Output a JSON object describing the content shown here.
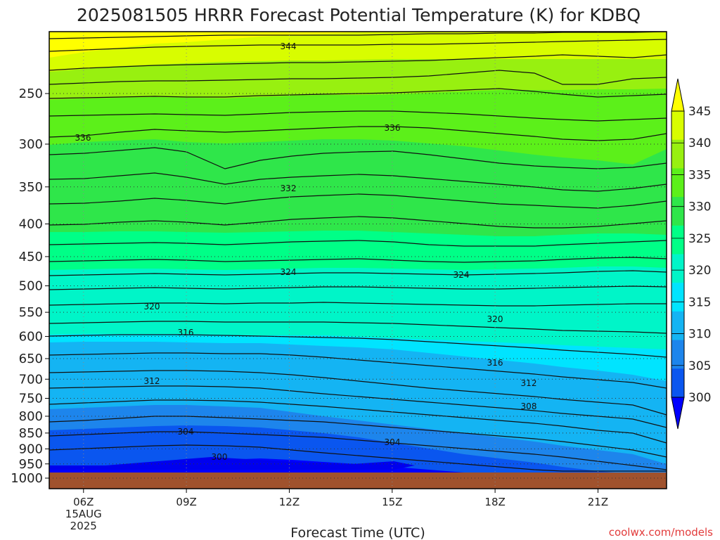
{
  "chart_data": {
    "type": "heatmap",
    "title": "2025081505 HRRR Forecast Potential Temperature (K) for KDBQ",
    "xlabel": "Forecast Time (UTC)",
    "ylabel": "",
    "x_ticks": [
      "06Z",
      "09Z",
      "12Z",
      "15Z",
      "18Z",
      "21Z"
    ],
    "x_first_tick_date": [
      "15AUG",
      "2025"
    ],
    "xlim_hours": [
      5,
      23
    ],
    "y_ticks": [
      250,
      300,
      350,
      400,
      450,
      500,
      550,
      600,
      650,
      700,
      750,
      800,
      850,
      900,
      950,
      1000
    ],
    "ylim_hPa": [
      1000,
      200
    ],
    "y_scale": "log",
    "surface_pressure_hPa": 975,
    "colorbar": {
      "levels": [
        300,
        305,
        310,
        315,
        320,
        325,
        330,
        335,
        340,
        345
      ],
      "colors": [
        "#0000ff",
        "#0a56ef",
        "#1d85ec",
        "#14b4f3",
        "#00e4ff",
        "#00f5c8",
        "#00ff87",
        "#2fe64a",
        "#5cf01a",
        "#98f010",
        "#d8fd00",
        "#ffff00"
      ]
    },
    "contour_labels": [
      {
        "value": "344"
      },
      {
        "value": "336"
      },
      {
        "value": "336"
      },
      {
        "value": "332"
      },
      {
        "value": "324"
      },
      {
        "value": "324"
      },
      {
        "value": "320"
      },
      {
        "value": "320"
      },
      {
        "value": "316"
      },
      {
        "value": "316"
      },
      {
        "value": "312"
      },
      {
        "value": "312"
      },
      {
        "value": "308"
      },
      {
        "value": "304"
      },
      {
        "value": "304"
      },
      {
        "value": "300"
      }
    ],
    "grid": true
  },
  "credit": "coolwx.com/models",
  "colors": {
    "ground": "#a0522d",
    "contour": "#111111",
    "grid": "#333333"
  }
}
